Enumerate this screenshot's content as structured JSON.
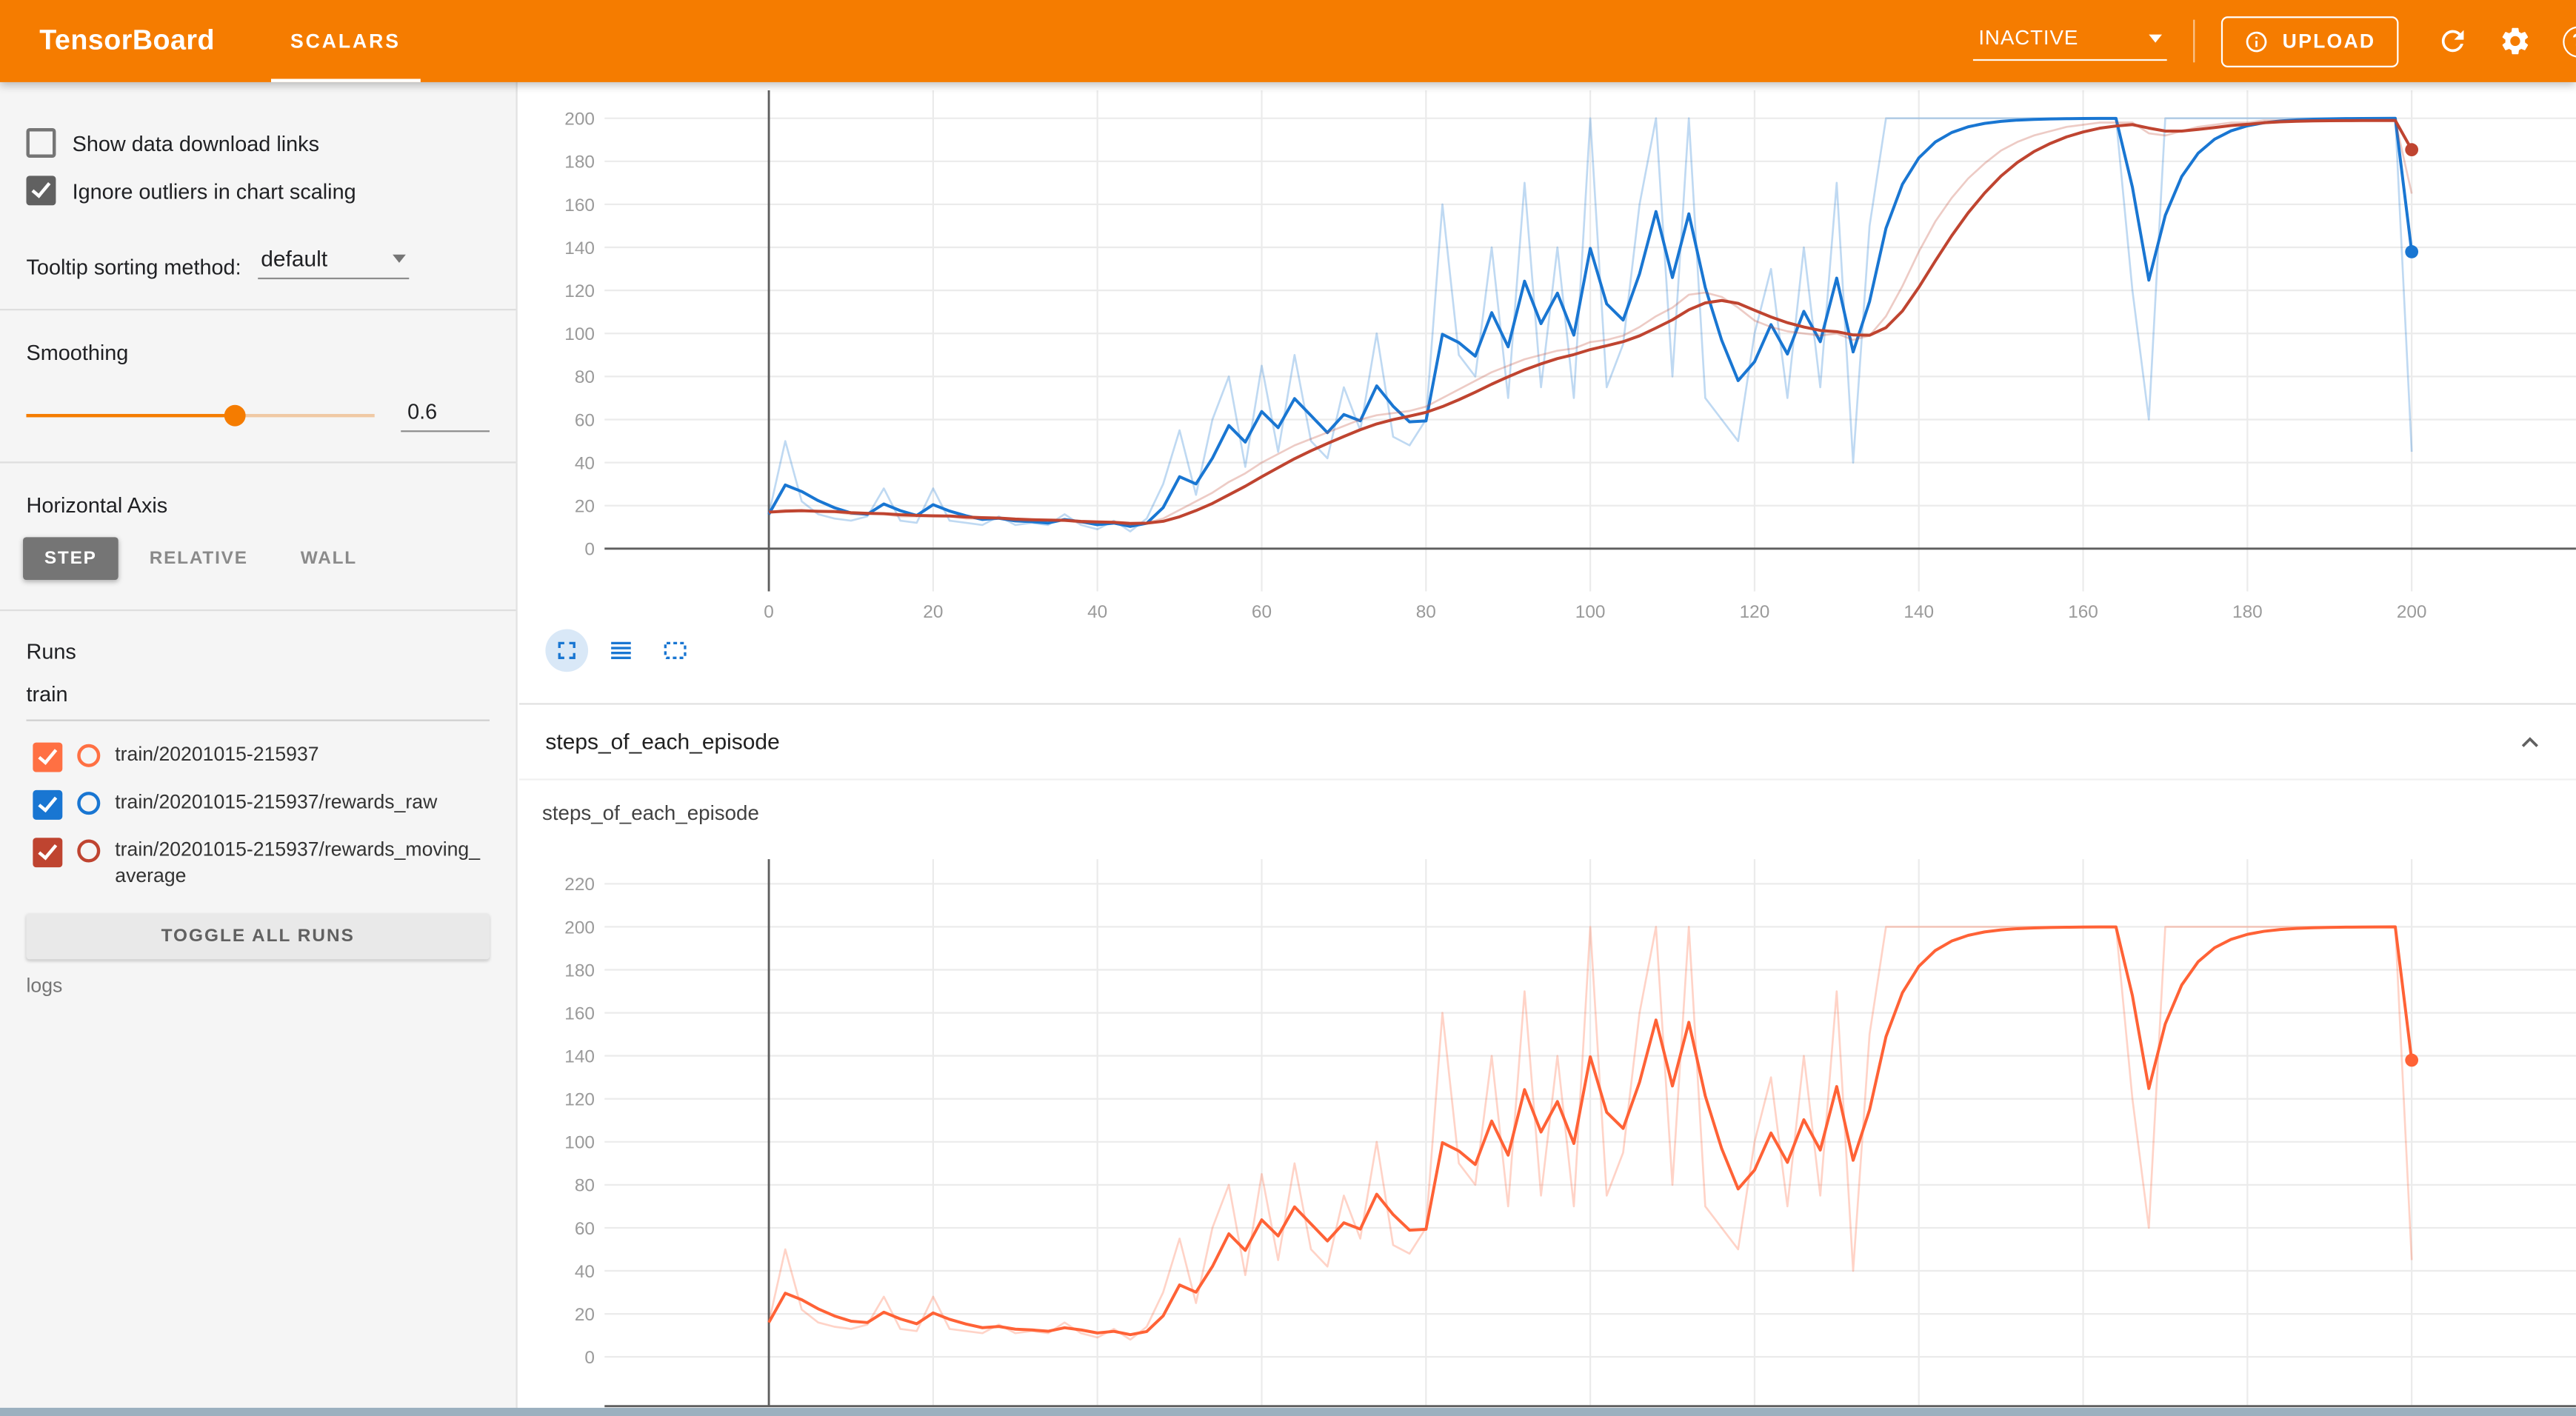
{
  "header": {
    "logo": "TensorBoard",
    "tab": "SCALARS",
    "status": "INACTIVE",
    "upload_label": "UPLOAD",
    "icons": [
      "info-icon",
      "refresh-icon",
      "settings-gear-icon",
      "help-icon"
    ],
    "help_glyph": "?",
    "header_bg": "#f57c00"
  },
  "sidebar": {
    "show_download_links": {
      "label": "Show data download links",
      "checked": false
    },
    "ignore_outliers": {
      "label": "Ignore outliers in chart scaling",
      "checked": true,
      "color": "#616161"
    },
    "tooltip_sorting": {
      "label": "Tooltip sorting method:",
      "value": "default"
    },
    "smoothing": {
      "label": "Smoothing",
      "value": "0.6"
    },
    "horizontal_axis": {
      "label": "Horizontal Axis",
      "options": [
        "STEP",
        "RELATIVE",
        "WALL"
      ],
      "selected": "STEP"
    },
    "runs": {
      "label": "Runs",
      "filter_value": "train",
      "items": [
        {
          "label": "train/20201015-215937",
          "color": "#ff7043",
          "checked": true
        },
        {
          "label": "train/20201015-215937/rewards_raw",
          "color": "#1976d2",
          "checked": true
        },
        {
          "label": "train/20201015-215937/rewards_moving_average",
          "color": "#bf4430",
          "checked": true
        }
      ],
      "toggle_all": "TOGGLE ALL RUNS",
      "footer": "logs"
    }
  },
  "main": {
    "section_title": "steps_of_each_episode",
    "toolbar_icons": [
      "fullscreen-icon",
      "runs-table-icon",
      "fit-domain-icon"
    ],
    "collapse_icon": "chevron-up-icon"
  },
  "chart_data": {
    "smoothing_applied": 0.6,
    "x": [
      0,
      2,
      4,
      6,
      8,
      10,
      12,
      14,
      16,
      18,
      20,
      22,
      24,
      26,
      28,
      30,
      32,
      34,
      36,
      38,
      40,
      42,
      44,
      46,
      48,
      50,
      52,
      54,
      56,
      58,
      60,
      62,
      64,
      66,
      68,
      70,
      72,
      74,
      76,
      78,
      80,
      82,
      84,
      86,
      88,
      90,
      92,
      94,
      96,
      98,
      100,
      102,
      104,
      106,
      108,
      110,
      112,
      114,
      116,
      118,
      120,
      122,
      124,
      126,
      128,
      130,
      132,
      134,
      136,
      138,
      140,
      142,
      144,
      146,
      148,
      150,
      152,
      154,
      156,
      158,
      160,
      162,
      164,
      166,
      168,
      170,
      172,
      174,
      176,
      178,
      180,
      182,
      184,
      186,
      188,
      190,
      192,
      194,
      196,
      198,
      200
    ],
    "values": {
      "steps": [
        16,
        50,
        22,
        16,
        14,
        13,
        15,
        28,
        13,
        12,
        28,
        13,
        12,
        11,
        15,
        11,
        12,
        11,
        16,
        11,
        9,
        13,
        8,
        14,
        30,
        55,
        25,
        60,
        80,
        38,
        85,
        45,
        90,
        50,
        42,
        75,
        55,
        100,
        52,
        48,
        60,
        160,
        90,
        80,
        140,
        70,
        170,
        75,
        140,
        70,
        200,
        75,
        95,
        160,
        200,
        80,
        200,
        70,
        60,
        50,
        100,
        130,
        70,
        140,
        75,
        170,
        40,
        150,
        200,
        200,
        200,
        200,
        200,
        200,
        200,
        200,
        200,
        200,
        200,
        200,
        200,
        200,
        200,
        120,
        60,
        200,
        200,
        200,
        200,
        200,
        200,
        200,
        200,
        200,
        200,
        200,
        200,
        200,
        200,
        200,
        45
      ],
      "moving_avg": [
        17,
        18,
        18,
        17,
        17,
        16,
        16,
        16,
        15,
        15,
        15,
        15,
        14,
        14,
        14,
        13,
        13,
        13,
        13,
        12,
        12,
        12,
        11,
        12,
        14,
        18,
        22,
        26,
        31,
        35,
        40,
        44,
        48,
        51,
        54,
        57,
        60,
        62,
        63,
        64,
        66,
        70,
        74,
        78,
        82,
        85,
        88,
        90,
        92,
        93,
        96,
        97,
        99,
        103,
        108,
        112,
        118,
        119,
        117,
        112,
        106,
        103,
        101,
        100,
        99,
        100,
        97,
        99,
        108,
        122,
        138,
        152,
        163,
        172,
        179,
        185,
        189,
        192,
        194,
        196,
        197,
        198,
        198,
        198,
        193,
        192,
        194,
        196,
        197,
        198,
        198,
        199,
        199,
        199,
        199,
        199,
        199,
        199,
        199,
        199,
        165
      ]
    },
    "charts": [
      {
        "type": "line",
        "title": "",
        "xlabel": "step",
        "ylabel": "",
        "xlim": [
          0,
          200
        ],
        "ylim": [
          0,
          200
        ],
        "xticks": [
          0,
          20,
          40,
          60,
          80,
          100,
          120,
          140,
          160,
          180,
          200
        ],
        "yticks": [
          0,
          20,
          40,
          60,
          80,
          100,
          120,
          140,
          160,
          180,
          200
        ],
        "grid": true,
        "legend": "none",
        "series": [
          {
            "name": "train/20201015-215937/rewards_raw",
            "color": "#1976d2",
            "values_key": "steps",
            "raw_shown_faded": true,
            "smoothed_shown": true
          },
          {
            "name": "train/20201015-215937/rewards_moving_average",
            "color": "#bf4430",
            "values_key": "moving_avg",
            "raw_shown_faded": true,
            "smoothed_shown": true
          }
        ]
      },
      {
        "type": "line",
        "title": "steps_of_each_episode",
        "xlabel": "step",
        "ylabel": "",
        "xlim": [
          0,
          200
        ],
        "ylim": [
          0,
          220
        ],
        "xticks": [
          0,
          20,
          40,
          60,
          80,
          100,
          120,
          140,
          160,
          180,
          200
        ],
        "yticks": [
          0,
          20,
          40,
          60,
          80,
          100,
          120,
          140,
          160,
          180,
          200,
          220
        ],
        "grid": true,
        "legend": "none",
        "x_labels_visible": false,
        "series": [
          {
            "name": "train/20201015-215937",
            "color": "#ff6236",
            "values_key": "steps",
            "raw_shown_faded": true,
            "smoothed_shown": true
          }
        ]
      }
    ]
  }
}
